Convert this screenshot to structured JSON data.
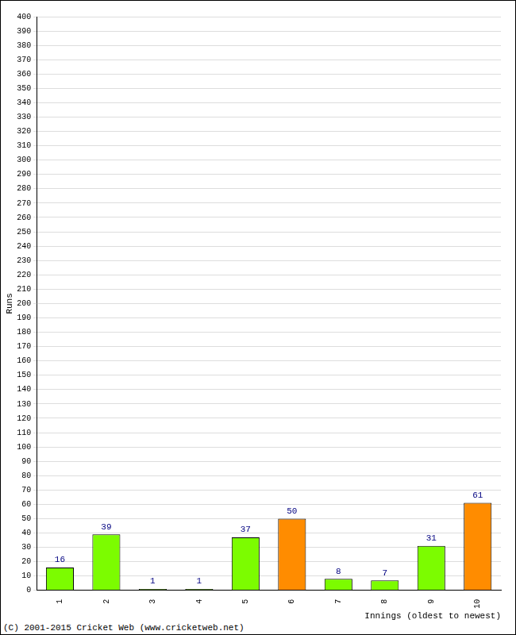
{
  "chart_data": {
    "type": "bar",
    "categories": [
      "1",
      "2",
      "3",
      "4",
      "5",
      "6",
      "7",
      "8",
      "9",
      "10"
    ],
    "values": [
      16,
      39,
      1,
      1,
      37,
      50,
      8,
      7,
      31,
      61
    ],
    "colors": [
      "#7cfc00",
      "#7cfc00",
      "#7cfc00",
      "#7cfc00",
      "#7cfc00",
      "#ff8c00",
      "#7cfc00",
      "#7cfc00",
      "#7cfc00",
      "#ff8c00"
    ],
    "x_label": "Innings (oldest to newest)",
    "y_label": "Runs",
    "annotations": [
      "(C) 2001-2015 Cricket Web (www.cricketweb.net)"
    ],
    "ylim": [
      0,
      400
    ],
    "yticks": [
      0,
      10,
      20,
      30,
      40,
      50,
      60,
      70,
      80,
      90,
      100,
      110,
      120,
      130,
      140,
      150,
      160,
      170,
      180,
      190,
      200,
      210,
      220,
      230,
      240,
      250,
      260,
      270,
      280,
      290,
      300,
      310,
      320,
      330,
      340,
      350,
      360,
      370,
      380,
      390,
      400
    ],
    "grid": true,
    "data_labels": true
  }
}
